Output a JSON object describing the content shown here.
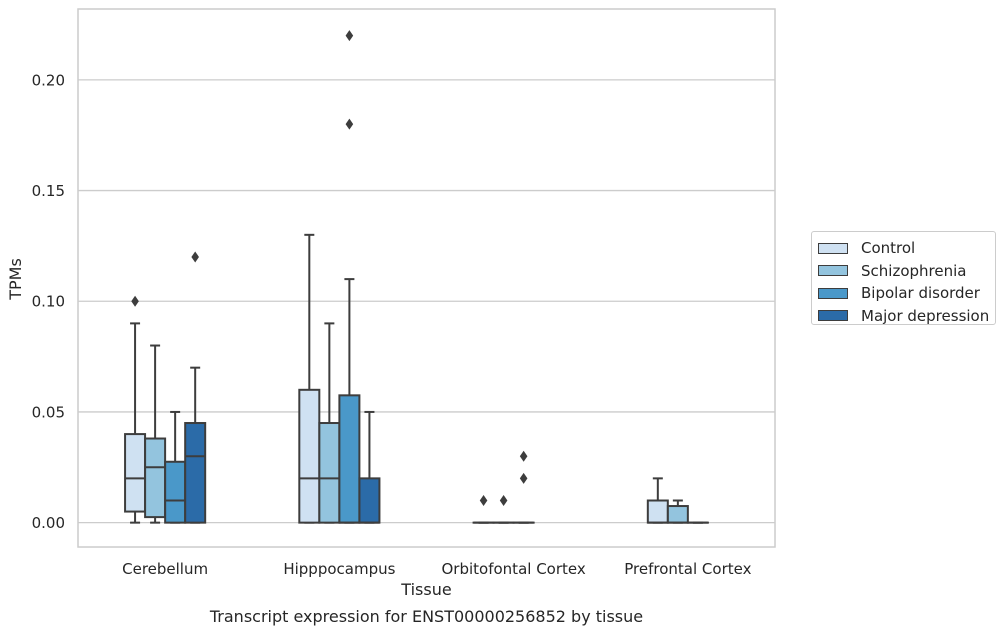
{
  "chart_data": {
    "type": "box",
    "caption": "Transcript expression for ENST00000256852 by tissue",
    "xlabel": "Tissue",
    "ylabel": "TPMs",
    "ylim": [
      -0.011,
      0.232
    ],
    "yticks": [
      0.0,
      0.05,
      0.1,
      0.15,
      0.2
    ],
    "ytick_labels": [
      "0.00",
      "0.05",
      "0.10",
      "0.15",
      "0.20"
    ],
    "grid": "horizontal",
    "legend_position": "right",
    "categories": [
      "Cerebellum",
      "Hipppocampus",
      "Orbitofontal Cortex",
      "Prefrontal Cortex"
    ],
    "series": [
      {
        "name": "Control",
        "color": "#cfe1f2",
        "boxes": [
          {
            "whisker_low": 0.0,
            "q1": 0.005,
            "median": 0.02,
            "q3": 0.04,
            "whisker_high": 0.09,
            "outliers": [
              0.1
            ]
          },
          {
            "whisker_low": 0.0,
            "q1": 0.0,
            "median": 0.02,
            "q3": 0.06,
            "whisker_high": 0.13,
            "outliers": []
          },
          {
            "whisker_low": 0.0,
            "q1": 0.0,
            "median": 0.0,
            "q3": 0.0,
            "whisker_high": 0.0,
            "outliers": [
              0.01
            ]
          },
          {
            "whisker_low": 0.0,
            "q1": 0.0,
            "median": 0.0,
            "q3": 0.01,
            "whisker_high": 0.02,
            "outliers": []
          }
        ]
      },
      {
        "name": "Schizophrenia",
        "color": "#93c4de",
        "boxes": [
          {
            "whisker_low": 0.0,
            "q1": 0.0025,
            "median": 0.025,
            "q3": 0.038,
            "whisker_high": 0.08,
            "outliers": []
          },
          {
            "whisker_low": 0.0,
            "q1": 0.0,
            "median": 0.02,
            "q3": 0.045,
            "whisker_high": 0.09,
            "outliers": []
          },
          {
            "whisker_low": 0.0,
            "q1": 0.0,
            "median": 0.0,
            "q3": 0.0,
            "whisker_high": 0.0,
            "outliers": [
              0.01
            ]
          },
          {
            "whisker_low": 0.0,
            "q1": 0.0,
            "median": 0.0,
            "q3": 0.0075,
            "whisker_high": 0.01,
            "outliers": []
          }
        ]
      },
      {
        "name": "Bipolar disorder",
        "color": "#4a98c9",
        "boxes": [
          {
            "whisker_low": 0.0,
            "q1": 0.0,
            "median": 0.01,
            "q3": 0.0275,
            "whisker_high": 0.05,
            "outliers": []
          },
          {
            "whisker_low": 0.0,
            "q1": 0.0,
            "median": 0.0,
            "q3": 0.0575,
            "whisker_high": 0.11,
            "outliers": [
              0.18,
              0.22
            ]
          },
          {
            "whisker_low": 0.0,
            "q1": 0.0,
            "median": 0.0,
            "q3": 0.0,
            "whisker_high": 0.0,
            "outliers": [
              0.02,
              0.03
            ]
          },
          {
            "whisker_low": 0.0,
            "q1": 0.0,
            "median": 0.0,
            "q3": 0.0,
            "whisker_high": 0.0,
            "outliers": []
          }
        ]
      },
      {
        "name": "Major depression",
        "color": "#2b6ba8",
        "boxes": [
          {
            "whisker_low": 0.0,
            "q1": 0.0,
            "median": 0.03,
            "q3": 0.045,
            "whisker_high": 0.07,
            "outliers": [
              0.12
            ]
          },
          {
            "whisker_low": 0.0,
            "q1": 0.0,
            "median": 0.0,
            "q3": 0.02,
            "whisker_high": 0.05,
            "outliers": []
          },
          null,
          null
        ]
      }
    ]
  }
}
